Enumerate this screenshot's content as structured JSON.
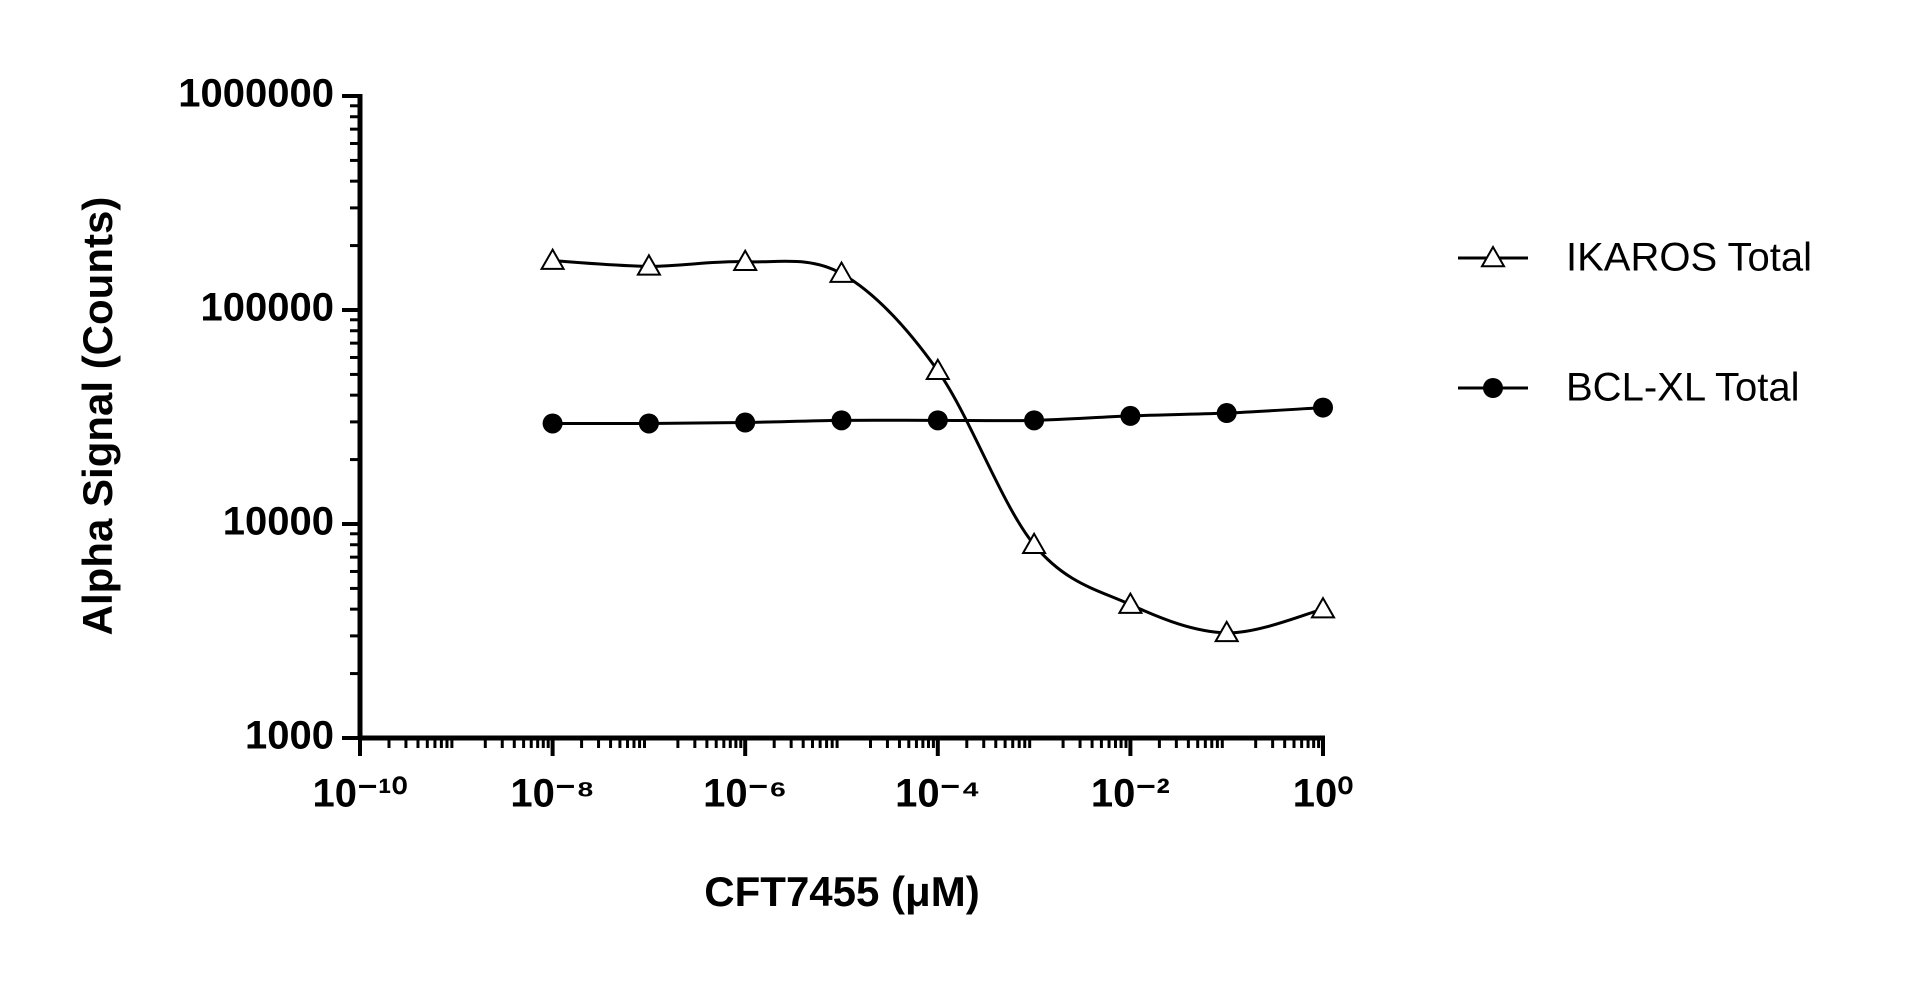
{
  "chart_data": {
    "type": "scatter",
    "x_label": "CFT7455 (μM)",
    "y_label": "Alpha Signal (Counts)",
    "x": [
      1e-08,
      1e-07,
      1e-06,
      1e-05,
      0.0001,
      0.001,
      0.01,
      0.1,
      1
    ],
    "series": [
      {
        "name": "IKAROS Total",
        "color": "#000000",
        "marker": "open-triangle",
        "values": [
          170000,
          160000,
          168000,
          148000,
          52000,
          8000,
          4200,
          3100,
          4000
        ]
      },
      {
        "name": "BCL-XL Total",
        "color": "#000000",
        "marker": "filled-circle",
        "values": [
          29500,
          29500,
          29800,
          30500,
          30500,
          30500,
          32000,
          33000,
          35000
        ]
      }
    ],
    "xscale": "log",
    "yscale": "log",
    "xlim": [
      1e-10,
      1
    ],
    "ylim": [
      1000,
      1000000
    ],
    "xticks": [
      {
        "value": 1e-10,
        "label": "10⁻¹⁰"
      },
      {
        "value": 1e-08,
        "label": "10⁻⁸"
      },
      {
        "value": 1e-06,
        "label": "10⁻⁶"
      },
      {
        "value": 0.0001,
        "label": "10⁻⁴"
      },
      {
        "value": 0.01,
        "label": "10⁻²"
      },
      {
        "value": 1,
        "label": "10⁰"
      }
    ],
    "yticks": [
      1000,
      10000,
      100000,
      1000000
    ],
    "grid": false,
    "legend": "right"
  }
}
